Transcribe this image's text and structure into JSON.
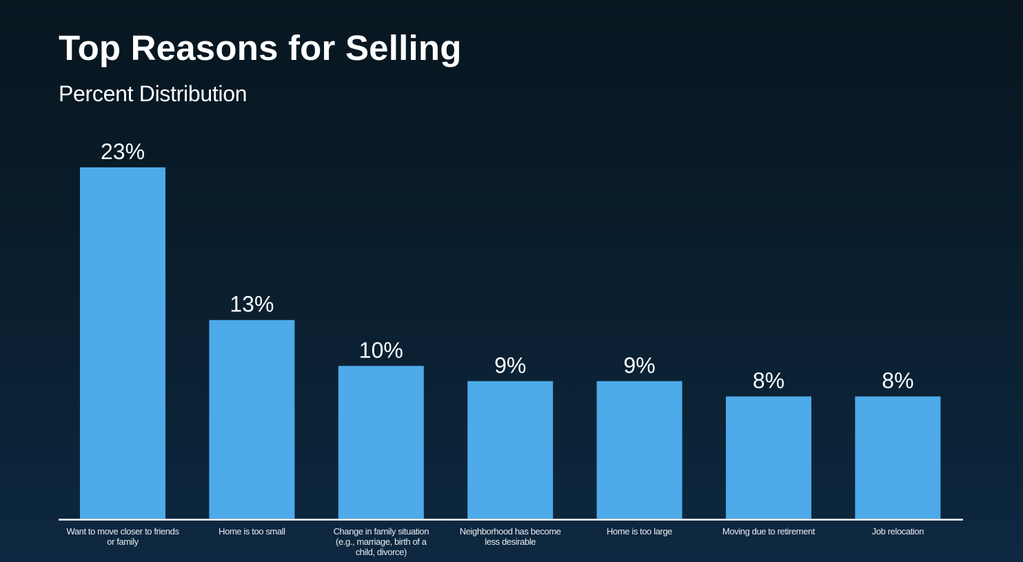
{
  "header": {
    "title": "Top Reasons for Selling",
    "subtitle": "Percent Distribution"
  },
  "colors": {
    "bar": "#4eaae8",
    "axis": "#ffffff",
    "text": "#ffffff"
  },
  "chart_data": {
    "type": "bar",
    "title": "Top Reasons for Selling",
    "subtitle": "Percent Distribution",
    "xlabel": "",
    "ylabel": "",
    "ylim": [
      0,
      23
    ],
    "grid": false,
    "legend": "none",
    "categories": [
      [
        "Want to move closer to friends",
        "or family"
      ],
      [
        "Home is too small"
      ],
      [
        "Change in family situation",
        "(e.g., marriage, birth of a",
        "child, divorce)"
      ],
      [
        "Neighborhood has become",
        "less desirable"
      ],
      [
        "Home is too large"
      ],
      [
        "Moving due to retirement"
      ],
      [
        "Job relocation"
      ]
    ],
    "values": [
      23,
      13,
      10,
      9,
      9,
      8,
      8
    ],
    "value_labels": [
      "23%",
      "13%",
      "10%",
      "9%",
      "9%",
      "8%",
      "8%"
    ]
  }
}
